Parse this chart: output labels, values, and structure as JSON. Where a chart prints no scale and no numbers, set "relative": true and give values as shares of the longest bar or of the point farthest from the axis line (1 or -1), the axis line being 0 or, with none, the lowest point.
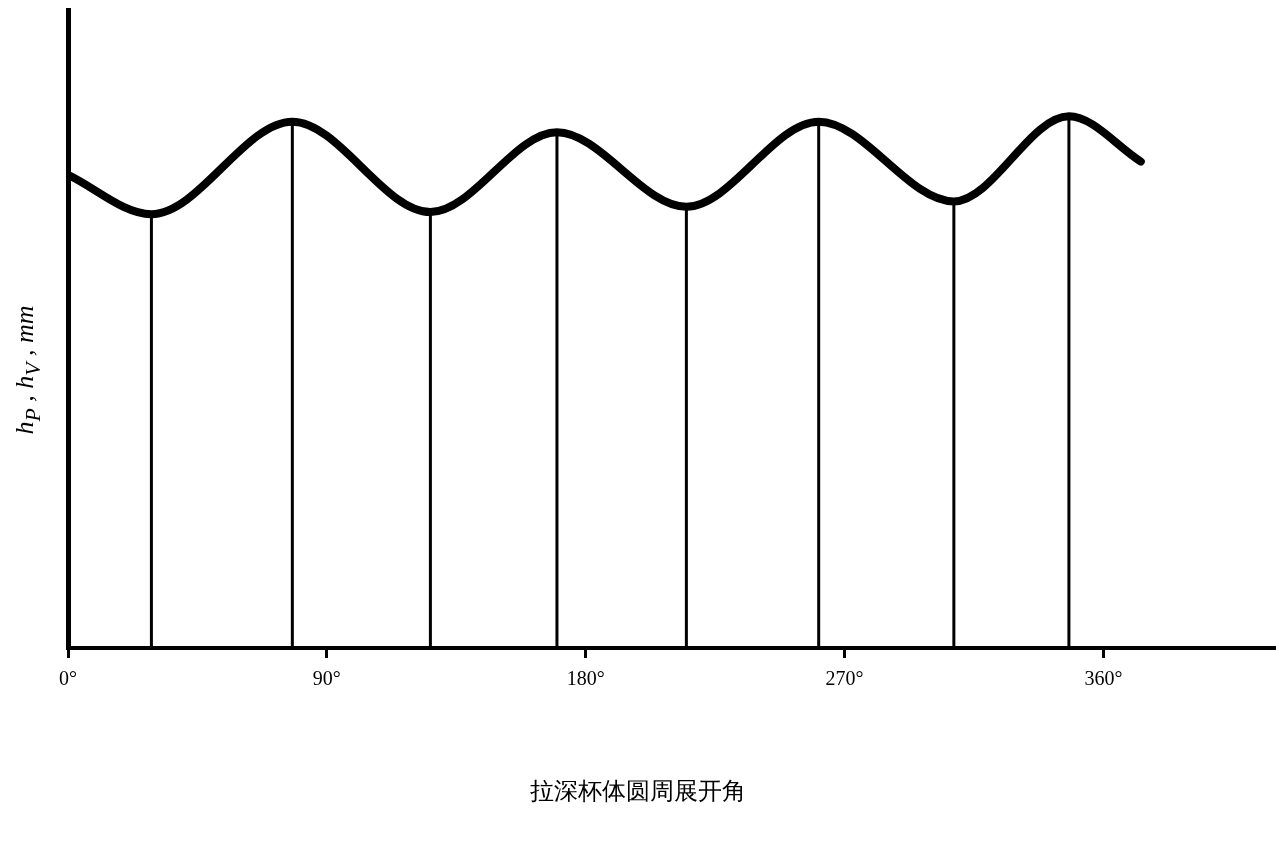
{
  "chart_data": {
    "type": "line",
    "xlabel": "拉深杯体圆周展开角",
    "ylabel": "h$_{P}$ , h$_{V}$ , mm",
    "relative": true,
    "grid": false,
    "legend": false,
    "series": [
      {
        "color": "#000000",
        "x": [
          0,
          29,
          78,
          126,
          170,
          215,
          261,
          308,
          348,
          373
        ],
        "values": [
          0.89,
          0.816,
          0.99,
          0.82,
          0.97,
          0.83,
          0.99,
          0.84,
          1.0,
          0.915
        ]
      }
    ],
    "xlim": [
      0,
      420
    ],
    "xticks": [
      {
        "value": 0,
        "label": "0°"
      },
      {
        "value": 90,
        "label": "90°"
      },
      {
        "value": 180,
        "label": "180°"
      },
      {
        "value": 270,
        "label": "270°"
      },
      {
        "value": 360,
        "label": "360°"
      }
    ],
    "ref_lines": [
      {
        "axis": "x",
        "value": 29
      },
      {
        "axis": "x",
        "value": 78
      },
      {
        "axis": "x",
        "value": 126
      },
      {
        "axis": "x",
        "value": 170
      },
      {
        "axis": "x",
        "value": 215
      },
      {
        "axis": "x",
        "value": 261
      },
      {
        "axis": "x",
        "value": 308
      },
      {
        "axis": "x",
        "value": 348
      }
    ]
  }
}
